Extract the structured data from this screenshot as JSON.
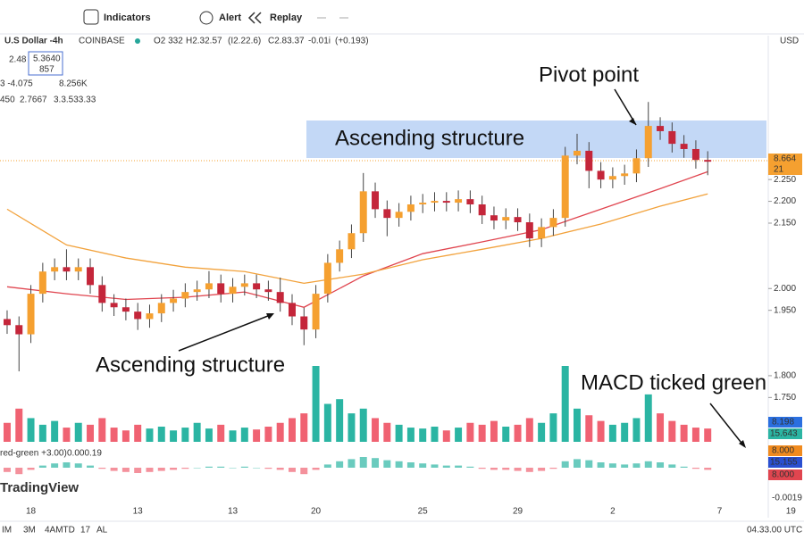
{
  "toolbar": {
    "items": [
      "Indicators",
      "Alert",
      "Replay"
    ]
  },
  "header": {
    "symbol": "U.S Dollar -4h",
    "exchange": "COINBASE",
    "ohlc": [
      "O2 332",
      "H2.32.57",
      "(I2.22.6)",
      "C2.83.37",
      "-0.01i",
      "(+0.193)"
    ],
    "legend_rows": [
      [
        "2.48",
        "5.3640",
        "857"
      ],
      [
        "3 -4.075",
        "8.256K"
      ],
      [
        "450",
        "2.7667",
        "3.3.533.33"
      ]
    ]
  },
  "price_axis": {
    "currency": "USD",
    "tags": [
      "8.664",
      "21",
      "8.198",
      "15.643",
      "8.000",
      "15.155",
      "8.000",
      "-0.0019"
    ]
  },
  "watermark": "TradingView",
  "bottom_bar": {
    "items": [
      "IM",
      "3M",
      "4AMTD",
      "17",
      "AL"
    ],
    "clock": "04.33.00 UTC"
  },
  "chart_data": {
    "type": "candlestick",
    "annotations": [
      "Pivot point",
      "Ascending structure",
      "Ascending structure",
      "MACD ticked green"
    ],
    "up_color": "#f5a030",
    "down_color": "#c4263a",
    "xlim": [
      -0.6,
      64.1
    ],
    "ylim": [
      1.72,
      2.58
    ],
    "yticks": [
      {
        "value": 2.25,
        "label": "2.250"
      },
      {
        "value": 2.2,
        "label": "2.200"
      },
      {
        "value": 2.15,
        "label": "2.150"
      },
      {
        "value": 2.0,
        "label": "2.000"
      },
      {
        "value": 1.95,
        "label": "1.950"
      },
      {
        "value": 1.8,
        "label": "1.800"
      },
      {
        "value": 1.75,
        "label": "1.750"
      }
    ],
    "xlabels": [
      {
        "index": 2,
        "label": "18"
      },
      {
        "index": 11,
        "label": "13"
      },
      {
        "index": 19,
        "label": "13"
      },
      {
        "index": 26,
        "label": "20"
      },
      {
        "index": 35,
        "label": "25"
      },
      {
        "index": 43,
        "label": "29"
      },
      {
        "index": 51,
        "label": "2"
      },
      {
        "index": 60,
        "label": "7"
      },
      {
        "index": 66,
        "label": "19"
      }
    ],
    "open": [
      1.93,
      1.916,
      1.895,
      1.988,
      2.039,
      2.049,
      2.039,
      2.049,
      2.008,
      1.967,
      1.957,
      1.947,
      1.93,
      1.943,
      1.967,
      1.977,
      1.992,
      1.998,
      2.012,
      1.988,
      2.004,
      2.012,
      1.998,
      1.992,
      1.967,
      1.936,
      1.906,
      1.988,
      2.059,
      2.09,
      2.127,
      2.223,
      2.182,
      2.162,
      2.176,
      2.193,
      2.197,
      2.201,
      2.197,
      2.205,
      2.193,
      2.168,
      2.156,
      2.164,
      2.152,
      2.115,
      2.141,
      2.162,
      2.305,
      2.316,
      2.27,
      2.25,
      2.258,
      2.264,
      2.299,
      2.373,
      2.361,
      2.332,
      2.32,
      2.295
    ],
    "high": [
      1.95,
      1.936,
      2.008,
      2.059,
      2.069,
      2.09,
      2.069,
      2.069,
      2.028,
      1.987,
      1.977,
      1.967,
      1.963,
      1.987,
      1.997,
      2.012,
      2.018,
      2.04,
      2.032,
      2.024,
      2.032,
      2.032,
      2.018,
      2.025,
      1.987,
      1.956,
      2.008,
      2.079,
      2.11,
      2.147,
      2.265,
      2.243,
      2.202,
      2.196,
      2.213,
      2.217,
      2.221,
      2.221,
      2.225,
      2.225,
      2.213,
      2.188,
      2.184,
      2.184,
      2.172,
      2.161,
      2.182,
      2.325,
      2.355,
      2.336,
      2.29,
      2.278,
      2.284,
      2.319,
      2.428,
      2.393,
      2.381,
      2.352,
      2.34,
      2.315
    ],
    "low": [
      1.896,
      1.81,
      1.875,
      1.968,
      2.019,
      2.019,
      2.019,
      1.988,
      1.947,
      1.937,
      1.927,
      1.905,
      1.91,
      1.923,
      1.947,
      1.957,
      1.972,
      1.978,
      1.968,
      1.968,
      1.984,
      1.978,
      1.972,
      1.947,
      1.916,
      1.87,
      1.886,
      1.968,
      2.039,
      2.07,
      2.107,
      2.162,
      2.12,
      2.142,
      2.156,
      2.173,
      2.177,
      2.177,
      2.177,
      2.173,
      2.148,
      2.136,
      2.136,
      2.132,
      2.095,
      2.095,
      2.121,
      2.142,
      2.285,
      2.23,
      2.23,
      2.23,
      2.238,
      2.244,
      2.279,
      2.341,
      2.312,
      2.3,
      2.275,
      2.26
    ],
    "close": [
      1.916,
      1.895,
      1.988,
      2.039,
      2.049,
      2.039,
      2.049,
      2.008,
      1.967,
      1.957,
      1.947,
      1.93,
      1.943,
      1.967,
      1.977,
      1.992,
      1.998,
      2.012,
      1.988,
      2.004,
      2.012,
      1.998,
      1.992,
      1.967,
      1.936,
      1.906,
      1.988,
      2.059,
      2.09,
      2.127,
      2.223,
      2.182,
      2.162,
      2.176,
      2.193,
      2.197,
      2.201,
      2.197,
      2.205,
      2.193,
      2.168,
      2.156,
      2.164,
      2.152,
      2.115,
      2.141,
      2.162,
      2.305,
      2.316,
      2.27,
      2.25,
      2.258,
      2.264,
      2.299,
      2.373,
      2.361,
      2.332,
      2.32,
      2.295,
      2.291
    ],
    "overlays": [
      {
        "color": "#e0454f",
        "x": [
          0,
          5,
          10,
          15,
          20,
          25,
          30,
          35,
          40,
          45,
          50,
          55,
          59
        ],
        "values": [
          2.004,
          1.988,
          1.975,
          1.98,
          1.992,
          1.957,
          2.029,
          2.08,
          2.107,
          2.135,
          2.182,
          2.229,
          2.268
        ]
      },
      {
        "color": "#f2a23c",
        "x": [
          0,
          5,
          10,
          15,
          20,
          25,
          30,
          35,
          40,
          45,
          50,
          55,
          59
        ],
        "values": [
          2.182,
          2.1,
          2.07,
          2.049,
          2.039,
          2.012,
          2.033,
          2.066,
          2.09,
          2.115,
          2.148,
          2.189,
          2.217
        ]
      }
    ],
    "volume": [
      20,
      35,
      25,
      18,
      22,
      15,
      20,
      18,
      25,
      15,
      12,
      18,
      14,
      16,
      12,
      15,
      20,
      14,
      18,
      12,
      15,
      13,
      16,
      20,
      25,
      30,
      80,
      40,
      45,
      30,
      35,
      25,
      20,
      18,
      15,
      14,
      16,
      12,
      15,
      20,
      18,
      22,
      16,
      18,
      25,
      20,
      30,
      80,
      35,
      28,
      22,
      18,
      20,
      25,
      50,
      30,
      22,
      18,
      15,
      14
    ],
    "volume_up_color": "#2bb5a3",
    "volume_down_color": "#f06272",
    "macd": {
      "label": "red-green +3.00)",
      "value": "0.000.19",
      "histogram": [
        -4,
        -6,
        -2,
        2,
        4,
        5,
        4,
        2,
        -1,
        -3,
        -4,
        -5,
        -4,
        -3,
        -2,
        -1,
        0,
        1,
        1,
        0,
        1,
        0,
        -1,
        -2,
        -4,
        -6,
        -2,
        3,
        6,
        8,
        10,
        9,
        7,
        6,
        5,
        4,
        3,
        2,
        2,
        1,
        -1,
        -2,
        -2,
        -3,
        -4,
        -3,
        -1,
        6,
        8,
        7,
        5,
        4,
        3,
        4,
        6,
        5,
        3,
        1,
        -1,
        -2
      ]
    }
  }
}
